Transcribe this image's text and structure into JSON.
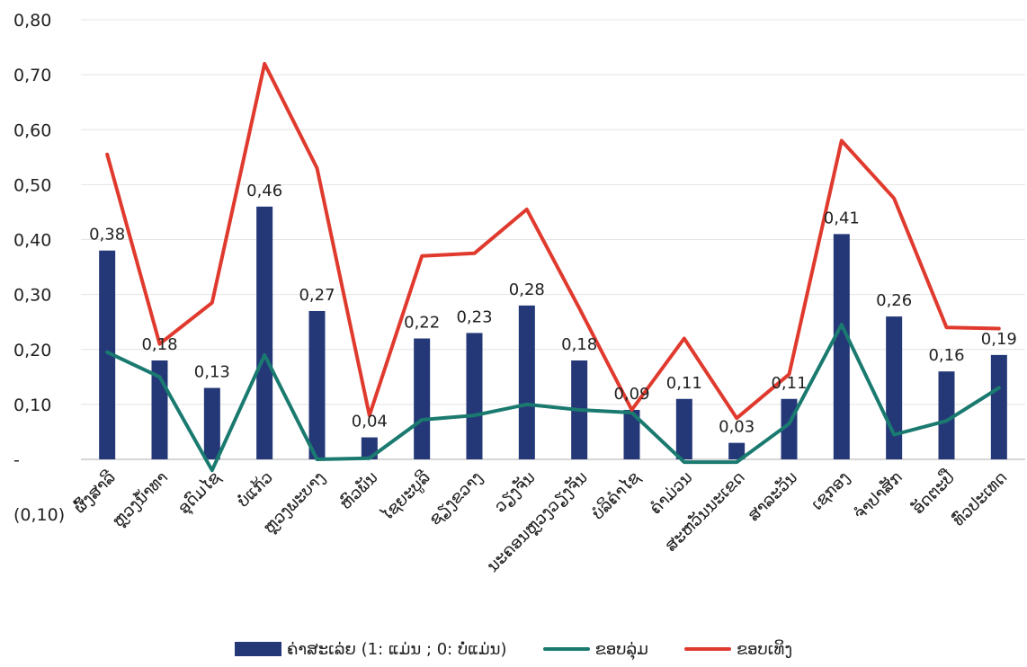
{
  "chart_data": {
    "type": "bar",
    "categories": [
      "ຜົ້ງສາລີ",
      "ຫຼວງນໍ້າທາ",
      "ອຸດົມໄຊ",
      "ບໍ່ແກ້ວ",
      "ຫຼວງພະບາງ",
      "ຫົວພັນ",
      "ໄຊຍະບູລີ",
      "ຊຽງຂວາງ",
      "ວຽງຈັນ",
      "ນະຄອນຫຼວງວຽງຈັນ",
      "ບໍລິຄໍາໄຊ",
      "ຄໍາມ່ວນ",
      "ສະຫວັນນະເຂດ",
      "ສາລະວັນ",
      "ເຊກອງ",
      "ຈໍາປາສັກ",
      "ອັດຕະປື",
      "ທົ່ວປະເທດ"
    ],
    "series": [
      {
        "name": "ຄ່າສະເລ່ຍ (1: ແມ່ນ ; 0: ບໍ່ແມ່ນ)",
        "kind": "bar",
        "color": "#243878",
        "values": [
          0.38,
          0.18,
          0.13,
          0.46,
          0.27,
          0.04,
          0.22,
          0.23,
          0.28,
          0.18,
          0.09,
          0.11,
          0.03,
          0.11,
          0.41,
          0.26,
          0.16,
          0.19
        ],
        "labels": [
          "0,38",
          "0,18",
          "0,13",
          "0,46",
          "0,27",
          "0,04",
          "0,22",
          "0,23",
          "0,28",
          "0,18",
          "0,09",
          "0,11",
          "0,03",
          "0,11",
          "0,41",
          "0,26",
          "0,16",
          "0,19"
        ]
      },
      {
        "name": "ຂອບລຸ່ມ",
        "kind": "line",
        "color": "#1a7a70",
        "values": [
          0.195,
          0.15,
          -0.02,
          0.19,
          0.0,
          0.002,
          0.072,
          0.08,
          0.1,
          0.09,
          0.085,
          -0.005,
          -0.005,
          0.065,
          0.245,
          0.045,
          0.07,
          0.13
        ]
      },
      {
        "name": "ຂອບເທິງ",
        "kind": "line",
        "color": "#e03a2e",
        "values": [
          0.555,
          0.21,
          0.285,
          0.72,
          0.53,
          0.08,
          0.37,
          0.375,
          0.455,
          0.275,
          0.09,
          0.22,
          0.075,
          0.155,
          0.58,
          0.475,
          0.24,
          0.238
        ]
      }
    ],
    "ylim": [
      -0.1,
      0.8
    ],
    "yticks": [
      -0.1,
      0.0,
      0.1,
      0.2,
      0.3,
      0.4,
      0.5,
      0.6,
      0.7,
      0.8
    ],
    "ytick_labels": [
      "(0,10)",
      "-",
      "0,10",
      "0,20",
      "0,30",
      "0,40",
      "0,50",
      "0,60",
      "0,70",
      "0,80"
    ],
    "grid": true,
    "legend": "bottom",
    "title": "",
    "xlabel": "",
    "ylabel": ""
  }
}
